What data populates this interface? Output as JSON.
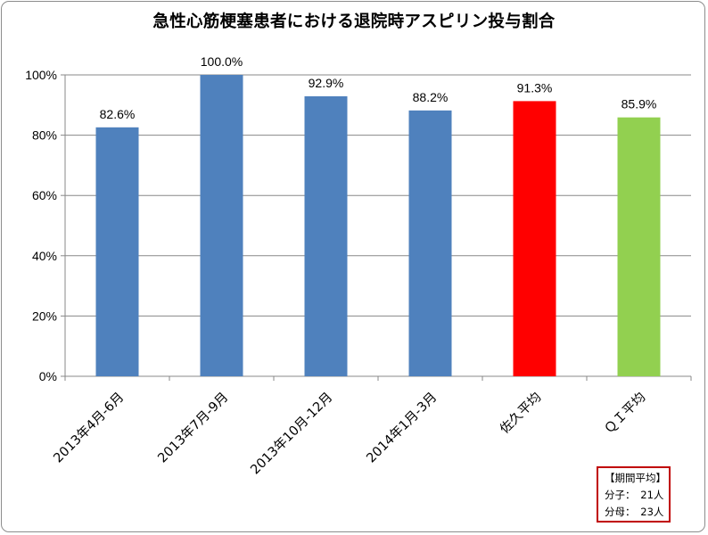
{
  "chart_data": {
    "type": "bar",
    "title": "急性心筋梗塞患者における退院時アスピリン投与割合",
    "categories": [
      "2013年4月-6月",
      "2013年7月-9月",
      "2013年10月-12月",
      "2014年1月-3月",
      "佐久平均",
      "ＱＩ平均"
    ],
    "values": [
      82.6,
      100.0,
      92.9,
      88.2,
      91.3,
      85.9
    ],
    "data_labels": [
      "82.6%",
      "100.0%",
      "92.9%",
      "88.2%",
      "91.3%",
      "85.9%"
    ],
    "bar_colors": [
      "#4f81bd",
      "#4f81bd",
      "#4f81bd",
      "#4f81bd",
      "#ff0000",
      "#92d050"
    ],
    "y_ticks": [
      0,
      20,
      40,
      60,
      80,
      100
    ],
    "y_tick_labels": [
      "0%",
      "20%",
      "40%",
      "60%",
      "80%",
      "100%"
    ],
    "ylim": [
      0,
      100
    ],
    "xlabel": "",
    "ylabel": "",
    "grid": true
  },
  "info_box": {
    "heading": "【期間平均】",
    "numerator": "分子：　21人",
    "denominator": "分母：　23人",
    "border_color": "#c00000"
  }
}
